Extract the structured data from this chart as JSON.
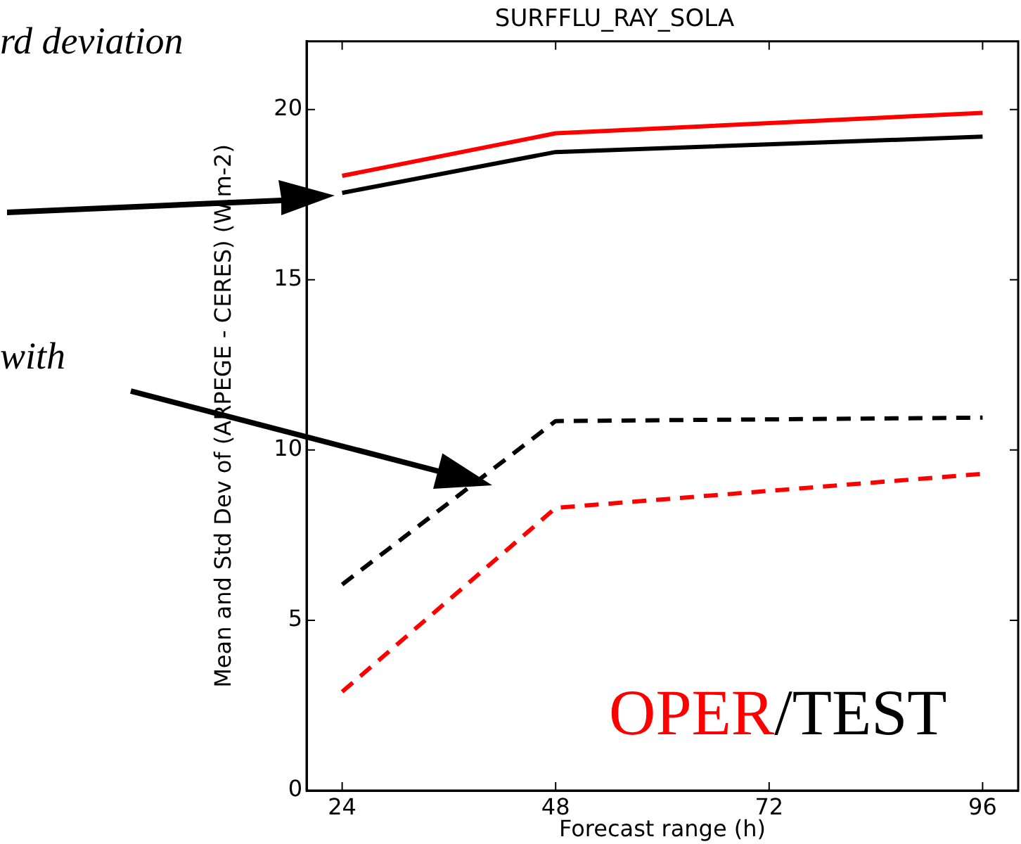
{
  "chart_data": {
    "type": "line",
    "title": "SURFFLU_RAY_SOLA",
    "xlabel": "Forecast range (h)",
    "ylabel": "Mean and Std Dev of (ARPEGE - CERES) (W.m-2)",
    "x": [
      24,
      48,
      96
    ],
    "xlim": [
      20,
      100
    ],
    "xticks": [
      24,
      48,
      72,
      96
    ],
    "ylim": [
      0,
      22
    ],
    "yticks": [
      0,
      5,
      10,
      15,
      20
    ],
    "grid": false,
    "legend": false,
    "series": [
      {
        "color": "#ff0000",
        "values": [
          18.05,
          19.3,
          19.9
        ],
        "line_style": "solid"
      },
      {
        "color": "#000000",
        "values": [
          17.55,
          18.75,
          19.2
        ],
        "line_style": "solid"
      },
      {
        "color": "#000000",
        "values": [
          6.05,
          10.85,
          10.95
        ],
        "line_style": "dashed"
      },
      {
        "color": "#ff0000",
        "values": [
          2.9,
          8.3,
          9.3
        ],
        "line_style": "dashed"
      }
    ],
    "annotations": [
      "rd deviation",
      "with",
      "OPER",
      "/TEST"
    ]
  }
}
